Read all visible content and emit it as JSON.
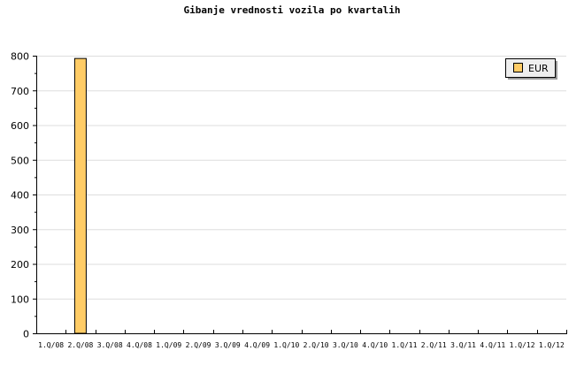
{
  "chart_data": {
    "type": "bar",
    "title": "Gibanje vrednosti vozila po kvartalih",
    "categories": [
      "1.Q/08",
      "2.Q/08",
      "3.Q/08",
      "4.Q/08",
      "1.Q/09",
      "2.Q/09",
      "3.Q/09",
      "4.Q/09",
      "1.Q/10",
      "2.Q/10",
      "3.Q/10",
      "4.Q/10",
      "1.Q/11",
      "2.Q/11",
      "3.Q/11",
      "4.Q/11",
      "1.Q/12",
      "1.Q/12"
    ],
    "series": [
      {
        "name": "EUR",
        "values": [
          0,
          792,
          0,
          0,
          0,
          0,
          0,
          0,
          0,
          0,
          0,
          0,
          0,
          0,
          0,
          0,
          0,
          0
        ],
        "color": "#ffcc66"
      }
    ],
    "ylim": [
      0,
      800
    ],
    "yticks": [
      0,
      100,
      200,
      300,
      400,
      500,
      600,
      700,
      800
    ],
    "grid": true,
    "legend_position": "top-right"
  }
}
